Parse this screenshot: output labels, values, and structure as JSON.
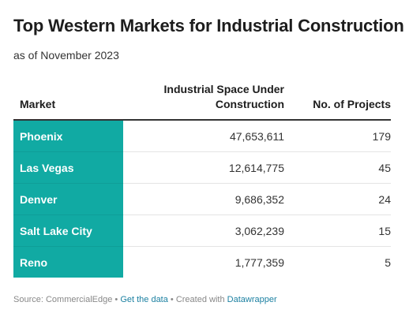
{
  "header": {
    "title": "Top Western Markets for Industrial Construction",
    "subtitle": "as of November 2023"
  },
  "chart_data": {
    "type": "table",
    "title": "Top Western Markets for Industrial Construction",
    "subtitle": "as of November 2023",
    "columns": [
      "Market",
      "Industrial Space Under Construction",
      "No. of Projects"
    ],
    "rows": [
      {
        "market": "Phoenix",
        "space": "47,653,611",
        "projects": "179"
      },
      {
        "market": "Las Vegas",
        "space": "12,614,775",
        "projects": "45"
      },
      {
        "market": "Denver",
        "space": "9,686,352",
        "projects": "24"
      },
      {
        "market": "Salt Lake City",
        "space": "3,062,239",
        "projects": "15"
      },
      {
        "market": "Reno",
        "space": "1,777,359",
        "projects": "5"
      }
    ]
  },
  "colors": {
    "market_cell": "#11aaa3",
    "link": "#1d81a2"
  },
  "footer": {
    "source_label": "Source: ",
    "source": "CommercialEdge",
    "separator": " • ",
    "get_data": "Get the data",
    "created_with": "Created with ",
    "tool": "Datawrapper"
  }
}
